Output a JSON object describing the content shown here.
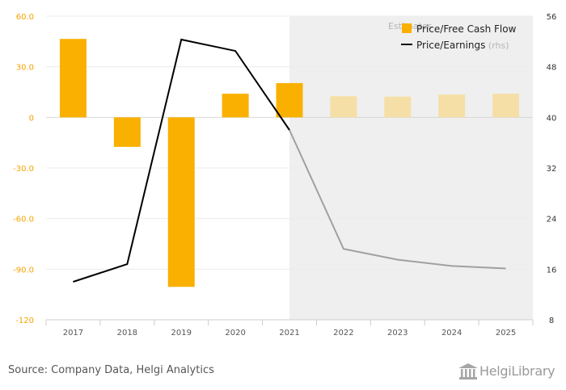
{
  "chart_data": {
    "type": "bar",
    "categories": [
      "2017",
      "2018",
      "2019",
      "2020",
      "2021",
      "2022",
      "2023",
      "2024",
      "2025"
    ],
    "series": [
      {
        "name": "Price/Free Cash Flow",
        "type": "bar",
        "axis": "left",
        "values": [
          46.5,
          -17.5,
          -100.5,
          14.0,
          20.3,
          12.5,
          12.3,
          13.5,
          14.0
        ]
      },
      {
        "name": "Price/Earnings",
        "type": "line",
        "axis": "right",
        "values": [
          14.0,
          16.8,
          52.3,
          50.5,
          38.0,
          19.2,
          17.5,
          16.5,
          16.1
        ]
      }
    ],
    "estimated_from": "2022",
    "estimates_label": "Estimates",
    "rhs_label": "(rhs)",
    "y_left": {
      "min": -120,
      "max": 60,
      "ticks": [
        "60.0",
        "30.0",
        "0",
        "-30.0",
        "-60.0",
        "-90.0",
        "-120"
      ]
    },
    "y_right": {
      "min": 8,
      "max": 56,
      "ticks": [
        "56",
        "48",
        "40",
        "32",
        "24",
        "16",
        "8"
      ]
    },
    "legend_position": "top-right",
    "colors": {
      "bar": "#f9b000",
      "bar_estimate": "#f6dfa6",
      "line": "#000000",
      "line_estimate": "#a0a0a0",
      "estimate_bg": "#efefef",
      "left_axis_text": "#f5a300",
      "right_axis_text": "#333333"
    }
  },
  "footer": {
    "source": "Source: Company Data, Helgi Analytics",
    "brand": "HelgiLibrary"
  },
  "icons": {
    "brand_icon": "library-building-icon"
  }
}
